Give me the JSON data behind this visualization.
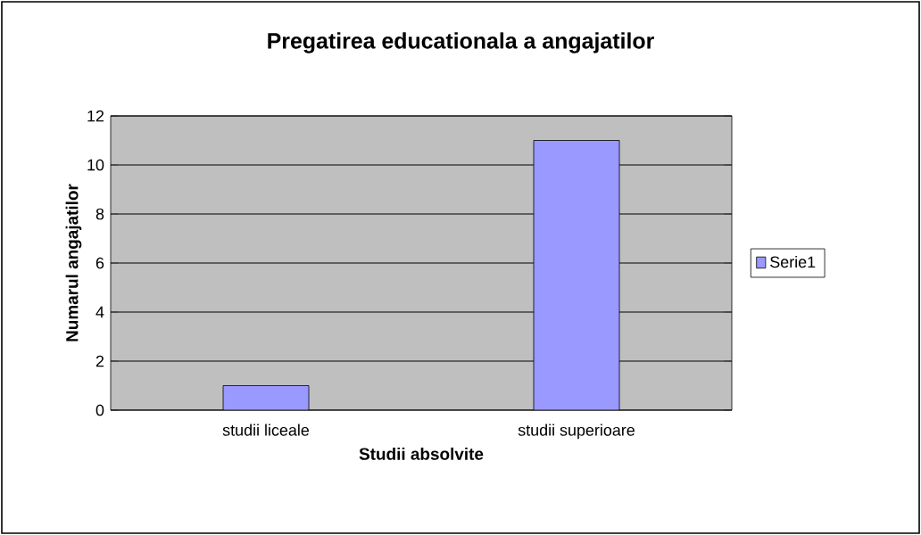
{
  "chart_data": {
    "type": "bar",
    "title": "Pregatirea educationala a angajatilor",
    "xlabel": "Studii absolvite",
    "ylabel": "Numarul angajatilor",
    "categories": [
      "studii liceale",
      "studii superioare"
    ],
    "series": [
      {
        "name": "Serie1",
        "color": "#9999ff",
        "values": [
          1,
          11
        ]
      }
    ],
    "ylim": [
      0,
      12
    ],
    "yticks": [
      0,
      2,
      4,
      6,
      8,
      10,
      12
    ],
    "grid": "y",
    "legend": "right"
  }
}
